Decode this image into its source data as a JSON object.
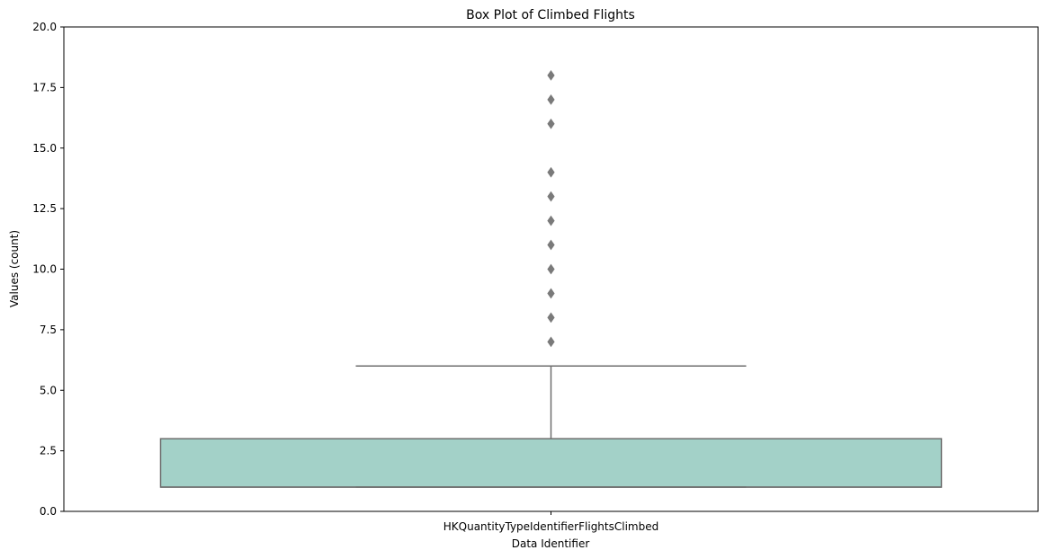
{
  "chart_data": {
    "type": "box",
    "title": "Box Plot of Climbed Flights",
    "xlabel": "Data Identifier",
    "ylabel": "Values (count)",
    "categories": [
      "HKQuantityTypeIdentifierFlightsClimbed"
    ],
    "ylim": [
      0,
      20
    ],
    "yticks": [
      0,
      2.5,
      5,
      7.5,
      10,
      12.5,
      15,
      17.5,
      20
    ],
    "ytick_labels": [
      "0.0",
      "2.5",
      "5.0",
      "7.5",
      "10.0",
      "12.5",
      "15.0",
      "17.5",
      "20.0"
    ],
    "grid": false,
    "box": {
      "whisker_low": 1,
      "q1": 1,
      "median": 1,
      "q3": 3,
      "whisker_high": 6,
      "outliers": [
        7,
        8,
        9,
        10,
        11,
        12,
        13,
        14,
        16,
        17,
        18
      ]
    },
    "colors": {
      "box_fill": "#a3d1c8",
      "line": "#6e6e6e",
      "outlier": "#7a7a7a"
    }
  }
}
